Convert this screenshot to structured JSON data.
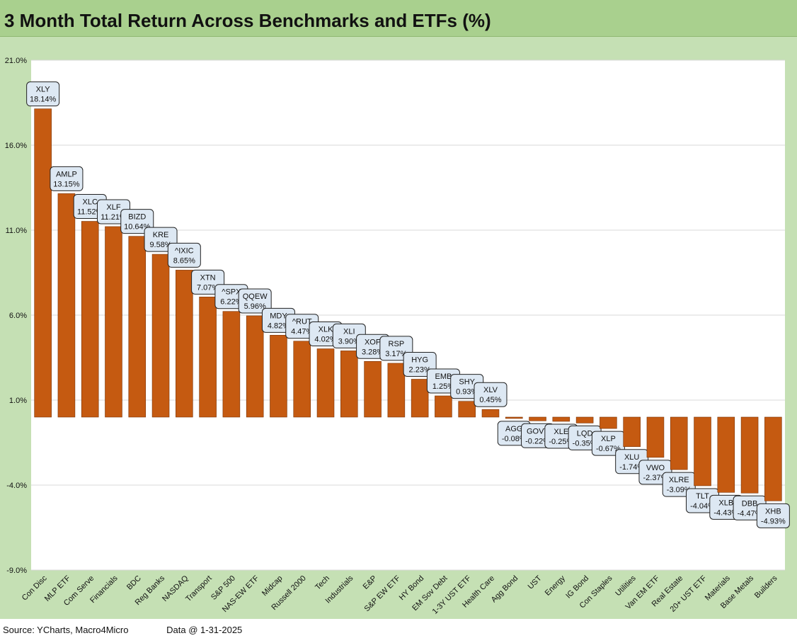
{
  "title": "3 Month Total Return Across Benchmarks and ETFs (%)",
  "footer": {
    "source": "Source: YCharts, Macro4Micro",
    "date": "Data @ 1-31-2025"
  },
  "colors": {
    "bar": "#c55a11",
    "title_bg": "#a9d08e",
    "outer_bg": "#c5e0b4",
    "label_bg": "#dde8f3"
  },
  "chart_data": {
    "type": "bar",
    "title": "3 Month Total Return Across Benchmarks and ETFs (%)",
    "ylim": [
      -9,
      21
    ],
    "yticks": [
      -9,
      -4,
      1,
      6,
      11,
      16,
      21
    ],
    "ytick_labels": [
      "-9.0%",
      "-4.0%",
      "1.0%",
      "6.0%",
      "11.0%",
      "16.0%",
      "21.0%"
    ],
    "grid": true,
    "categories": [
      "Con Disc",
      "MLP ETF",
      "Com Serve",
      "Financials",
      "BDC",
      "Reg Banks",
      "NASDAQ",
      "Transport",
      "S&P 500",
      "NAS-EW ETF",
      "Midcap",
      "Russell 2000",
      "Tech",
      "Industrials",
      "E&P",
      "S&P EW ETF",
      "HY Bond",
      "EM Sov Debt",
      "1-3Y UST ETF",
      "Health Care",
      "Agg Bond",
      "UST",
      "Energy",
      "IG Bond",
      "Con Staples",
      "Utilities",
      "Van EM ETF",
      "Real Estate",
      "20+ UST ETF",
      "Materials",
      "Base Metals",
      "Builders"
    ],
    "tickers": [
      "XLY",
      "AMLP",
      "XLC",
      "XLF",
      "BIZD",
      "KRE",
      "^IXIC",
      "XTN",
      "^SPX",
      "QQEW",
      "MDY",
      "^RUT",
      "XLK",
      "XLI",
      "XOP",
      "RSP",
      "HYG",
      "EMB",
      "SHY",
      "XLV",
      "AGG",
      "GOVT",
      "XLE",
      "LQD",
      "XLP",
      "XLU",
      "VWO",
      "XLRE",
      "TLT",
      "XLB",
      "DBB",
      "XHB"
    ],
    "value_labels": [
      "18.14%",
      "13.15%",
      "11.52%",
      "11.21%",
      "10.64%",
      "9.58%",
      "8.65%",
      "7.07%",
      "6.22%",
      "5.96%",
      "4.82%",
      "4.47%",
      "4.02%",
      "3.90%",
      "3.28%",
      "3.17%",
      "2.23%",
      "1.25%",
      "0.93%",
      "0.45%",
      "-0.08%",
      "-0.22%",
      "-0.25%",
      "-0.35%",
      "-0.67%",
      "-1.74%",
      "-2.37%",
      "-3.09%",
      "-4.04%",
      "-4.43%",
      "-4.47%",
      "-4.93%"
    ],
    "values": [
      18.14,
      13.15,
      11.52,
      11.21,
      10.64,
      9.58,
      8.65,
      7.07,
      6.22,
      5.96,
      4.82,
      4.47,
      4.02,
      3.9,
      3.28,
      3.17,
      2.23,
      1.25,
      0.93,
      0.45,
      -0.08,
      -0.22,
      -0.25,
      -0.35,
      -0.67,
      -1.74,
      -2.37,
      -3.09,
      -4.04,
      -4.43,
      -4.47,
      -4.93
    ]
  }
}
